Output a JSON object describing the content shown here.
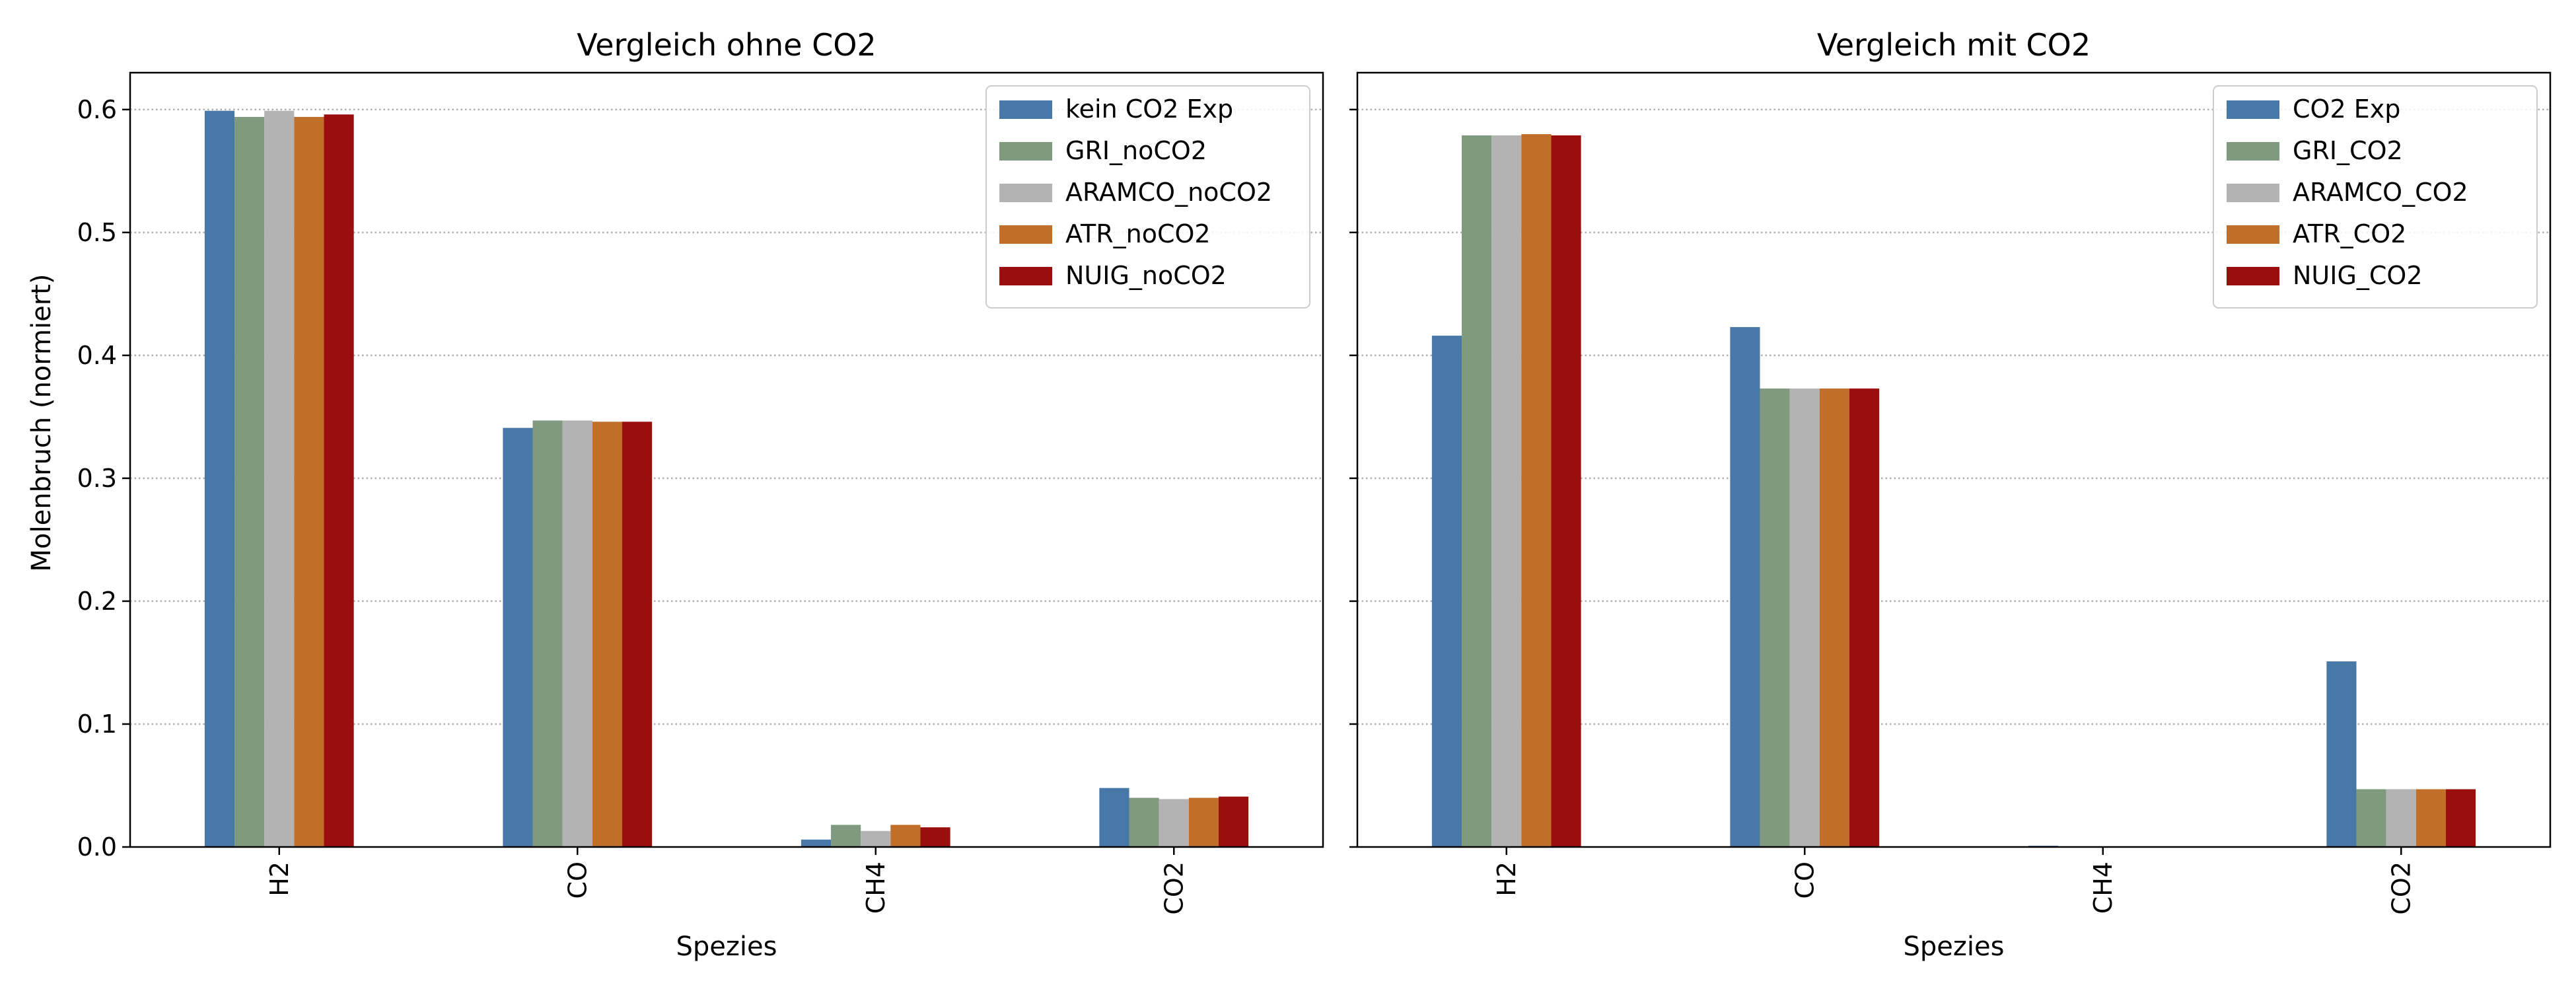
{
  "chart_data": [
    {
      "type": "bar",
      "title": "Vergleich ohne CO2",
      "xlabel": "Spezies",
      "ylabel": "Molenbruch (normiert)",
      "categories": [
        "H2",
        "CO",
        "CH4",
        "CO2"
      ],
      "ylim": [
        0,
        0.63
      ],
      "yticks": [
        "0.0",
        "0.1",
        "0.2",
        "0.3",
        "0.4",
        "0.5",
        "0.6"
      ],
      "grid": "y-dotted",
      "legend_position": "top-right",
      "series": [
        {
          "name": "kein CO2 Exp",
          "color": "#4878a8",
          "values": [
            0.599,
            0.341,
            0.006,
            0.048
          ]
        },
        {
          "name": "GRI_noCO2",
          "color": "#7f9a7f",
          "values": [
            0.594,
            0.347,
            0.018,
            0.04
          ]
        },
        {
          "name": "ARAMCO_noCO2",
          "color": "#b3b3b3",
          "values": [
            0.599,
            0.347,
            0.013,
            0.039
          ]
        },
        {
          "name": "ATR_noCO2",
          "color": "#c06e2a",
          "values": [
            0.594,
            0.346,
            0.018,
            0.04
          ]
        },
        {
          "name": "NUIG_noCO2",
          "color": "#9b0e0e",
          "values": [
            0.596,
            0.346,
            0.016,
            0.041
          ]
        }
      ]
    },
    {
      "type": "bar",
      "title": "Vergleich mit CO2",
      "xlabel": "Spezies",
      "ylabel": "",
      "categories": [
        "H2",
        "CO",
        "CH4",
        "CO2"
      ],
      "ylim": [
        0,
        0.63
      ],
      "grid": "y-dotted",
      "legend_position": "top-right",
      "series": [
        {
          "name": "CO2 Exp",
          "color": "#4878a8",
          "values": [
            0.416,
            0.423,
            0.001,
            0.151
          ]
        },
        {
          "name": "GRI_CO2",
          "color": "#7f9a7f",
          "values": [
            0.579,
            0.373,
            0.0,
            0.047
          ]
        },
        {
          "name": "ARAMCO_CO2",
          "color": "#b3b3b3",
          "values": [
            0.579,
            0.373,
            0.0,
            0.047
          ]
        },
        {
          "name": "ATR_CO2",
          "color": "#c06e2a",
          "values": [
            0.58,
            0.373,
            0.0,
            0.047
          ]
        },
        {
          "name": "NUIG_CO2",
          "color": "#9b0e0e",
          "values": [
            0.579,
            0.373,
            0.0,
            0.047
          ]
        }
      ]
    }
  ]
}
